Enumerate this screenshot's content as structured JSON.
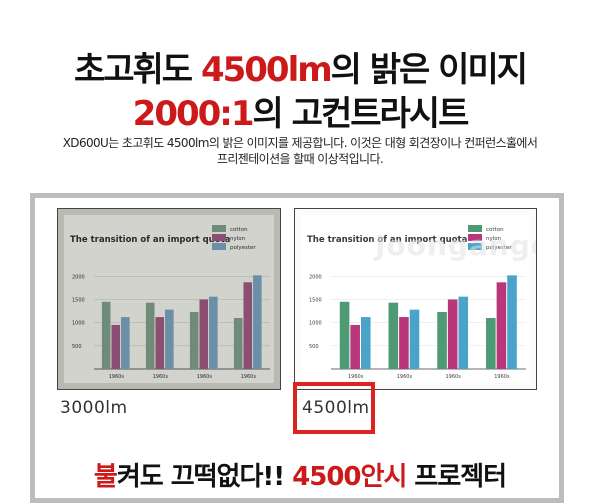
{
  "headline": {
    "line1_black": "초고휘도 ",
    "line1_red": "4500lm",
    "line1_black_end": "의 밝은 이미지",
    "line2_red": "2000:1",
    "line2_black": "의 고컨트라시트"
  },
  "description": {
    "line1": "XD600U는 초고휘도 4500lm의 밝은 이미지를 제공합니다. 이것은 대형 회견장이나 컨퍼런스홀에서",
    "line2": "프리젠테이션을 할때 이상적입니다."
  },
  "screens": [
    {
      "label": "3000lm",
      "variant": "dim"
    },
    {
      "label": "4500lm",
      "variant": "bright",
      "highlighted": true
    }
  ],
  "watermark": "Joongangdomain",
  "colors": {
    "accent_red": "#cc1a1a",
    "cotton": "#4e9a74",
    "nylon": "#b8367a",
    "polyester": "#4aa3c8",
    "cotton_dim": "#6f8c79",
    "nylon_dim": "#8c4f73",
    "polyester_dim": "#6a8fa6"
  },
  "projected_chart": {
    "title": "The transition of an import quota",
    "legend": [
      "cotton",
      "nylon",
      "polyester"
    ],
    "y_ticks": [
      "2000",
      "1500",
      "1000",
      "500"
    ],
    "categories": [
      "1960s",
      "1960s",
      "1960s",
      "1960s"
    ],
    "values": {
      "cotton": [
        1450,
        1430,
        1230,
        1100
      ],
      "nylon": [
        950,
        1120,
        1500,
        1870
      ],
      "polyester": [
        1120,
        1280,
        1560,
        2020
      ]
    }
  },
  "tagline": {
    "red1": "불",
    "black1": "켜도 끄떡없다!! ",
    "red2": "4500안시",
    "black2": " 프로젝터"
  }
}
